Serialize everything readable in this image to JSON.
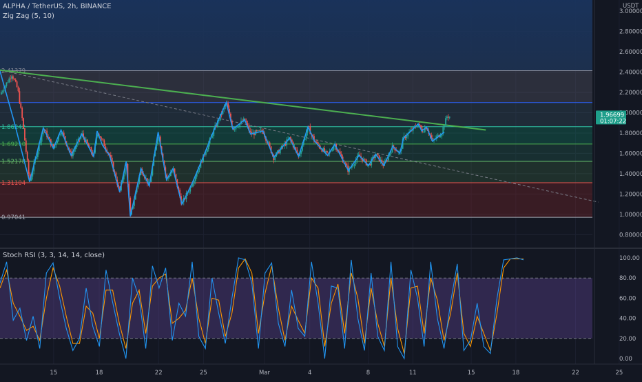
{
  "header": {
    "symbol_line": "ALPHA / TetherUS, 2h, BINANCE",
    "indicator_line": "Zig Zag (5, 10)",
    "currency": "USDT",
    "rsi_title": "Stoch RSI (3, 3, 14, 14, close)"
  },
  "colors": {
    "background": "#131722",
    "up_candle": "#26a69a",
    "down_candle": "#ef5350",
    "zigzag": "#2196f3",
    "trendline": "#4caf50",
    "price_tag": "#1e9e8a",
    "rsi_k": "#2196f3",
    "rsi_d": "#ff9800",
    "rsi_band": "#7e57c2"
  },
  "price_pane": {
    "y_ticks": [
      "3.00000",
      "2.80000",
      "2.60000",
      "2.40000",
      "2.20000",
      "2.00000",
      "1.80000",
      "1.60000",
      "1.40000",
      "1.20000",
      "1.00000",
      "0.80000"
    ],
    "fib_levels": [
      {
        "label": "2.41379",
        "value": 2.41379
      },
      {
        "label": "1.86242",
        "value": 1.86242
      },
      {
        "label": "1.69210",
        "value": 1.6921
      },
      {
        "label": "1.52178",
        "value": 1.52178
      },
      {
        "label": "1.31104",
        "value": 1.31104
      },
      {
        "label": "0.97041",
        "value": 0.97041
      }
    ],
    "extra_line": 2.1,
    "last_price": "1.96699",
    "countdown": "01:07:22",
    "zigzag": [
      [
        0,
        2.41
      ],
      [
        2.3,
        1.93
      ],
      [
        5,
        1.32
      ],
      [
        7.3,
        1.85
      ],
      [
        9,
        1.65
      ],
      [
        10.3,
        1.83
      ],
      [
        12,
        1.58
      ],
      [
        13.8,
        1.79
      ],
      [
        15.8,
        1.57
      ],
      [
        16.4,
        1.82
      ],
      [
        17.3,
        1.68
      ],
      [
        18.5,
        1.58
      ],
      [
        20.2,
        1.22
      ],
      [
        21.3,
        1.52
      ],
      [
        22,
        0.98
      ],
      [
        23.8,
        1.45
      ],
      [
        25.2,
        1.28
      ],
      [
        26.7,
        1.81
      ],
      [
        28.1,
        1.34
      ],
      [
        29.2,
        1.45
      ],
      [
        30.7,
        1.1
      ],
      [
        32.4,
        1.3
      ],
      [
        34.2,
        1.55
      ],
      [
        36.2,
        1.84
      ],
      [
        38.2,
        2.1
      ],
      [
        39.3,
        1.84
      ],
      [
        41.3,
        1.93
      ],
      [
        42.3,
        1.79
      ],
      [
        44.4,
        1.82
      ],
      [
        46.2,
        1.56
      ],
      [
        48.9,
        1.75
      ],
      [
        50.4,
        1.57
      ],
      [
        52,
        1.86
      ],
      [
        53.1,
        1.72
      ],
      [
        55.3,
        1.58
      ],
      [
        56.5,
        1.69
      ],
      [
        58.8,
        1.43
      ],
      [
        60.6,
        1.58
      ],
      [
        62.2,
        1.48
      ],
      [
        63.4,
        1.59
      ],
      [
        64.8,
        1.48
      ],
      [
        66.3,
        1.67
      ],
      [
        67.5,
        1.6
      ],
      [
        68.1,
        1.75
      ],
      [
        70.6,
        1.89
      ],
      [
        71.2,
        1.82
      ],
      [
        72,
        1.86
      ],
      [
        73,
        1.72
      ],
      [
        75,
        1.81
      ]
    ],
    "candle_path": [
      [
        0,
        2.18
      ],
      [
        2,
        2.38
      ],
      [
        3,
        2.23
      ],
      [
        3.8,
        1.92
      ],
      [
        5,
        1.32
      ],
      [
        7.3,
        1.85
      ],
      [
        9,
        1.65
      ],
      [
        10.3,
        1.83
      ],
      [
        12,
        1.58
      ],
      [
        13.8,
        1.79
      ],
      [
        15.8,
        1.57
      ],
      [
        16.4,
        1.82
      ],
      [
        18.5,
        1.58
      ],
      [
        20.2,
        1.22
      ],
      [
        21.3,
        1.52
      ],
      [
        22,
        0.98
      ],
      [
        23.8,
        1.45
      ],
      [
        25.2,
        1.28
      ],
      [
        26.7,
        1.81
      ],
      [
        28.1,
        1.34
      ],
      [
        29.2,
        1.45
      ],
      [
        30.7,
        1.1
      ],
      [
        32.4,
        1.3
      ],
      [
        34.2,
        1.55
      ],
      [
        36.2,
        1.84
      ],
      [
        38.2,
        2.1
      ],
      [
        39.3,
        1.84
      ],
      [
        41.3,
        1.93
      ],
      [
        42.3,
        1.79
      ],
      [
        44.4,
        1.82
      ],
      [
        46.2,
        1.56
      ],
      [
        48.9,
        1.75
      ],
      [
        50.4,
        1.57
      ],
      [
        52,
        1.86
      ],
      [
        53.1,
        1.72
      ],
      [
        55.3,
        1.58
      ],
      [
        56.5,
        1.69
      ],
      [
        58.8,
        1.43
      ],
      [
        60.6,
        1.58
      ],
      [
        62.2,
        1.48
      ],
      [
        63.4,
        1.59
      ],
      [
        64.8,
        1.48
      ],
      [
        66.3,
        1.67
      ],
      [
        67.5,
        1.6
      ],
      [
        68.1,
        1.75
      ],
      [
        70.6,
        1.89
      ],
      [
        71.2,
        1.82
      ],
      [
        72,
        1.86
      ],
      [
        73,
        1.72
      ],
      [
        74.5,
        1.8
      ],
      [
        75.5,
        1.97
      ],
      [
        76,
        1.96
      ]
    ],
    "trendline": [
      [
        0,
        2.42
      ],
      [
        82,
        1.83
      ]
    ],
    "dashed_line": [
      [
        0,
        2.42
      ],
      [
        101,
        1.12
      ]
    ]
  },
  "rsi_pane": {
    "y_ticks": [
      "100.00",
      "80.00",
      "60.00",
      "40.00",
      "20.00",
      "0.00"
    ],
    "upper_band": 80,
    "lower_band": 20,
    "k_line": [
      [
        0,
        75
      ],
      [
        1,
        96
      ],
      [
        2,
        38
      ],
      [
        3,
        50
      ],
      [
        4,
        18
      ],
      [
        5,
        42
      ],
      [
        6,
        10
      ],
      [
        7,
        85
      ],
      [
        8,
        95
      ],
      [
        9,
        60
      ],
      [
        10,
        30
      ],
      [
        11,
        8
      ],
      [
        12,
        20
      ],
      [
        13,
        70
      ],
      [
        14,
        32
      ],
      [
        15,
        12
      ],
      [
        16,
        88
      ],
      [
        17,
        56
      ],
      [
        18,
        25
      ],
      [
        19,
        0
      ],
      [
        20,
        80
      ],
      [
        21,
        60
      ],
      [
        22,
        10
      ],
      [
        23,
        92
      ],
      [
        24,
        70
      ],
      [
        25,
        90
      ],
      [
        26,
        18
      ],
      [
        27,
        55
      ],
      [
        28,
        42
      ],
      [
        29,
        96
      ],
      [
        30,
        22
      ],
      [
        31,
        10
      ],
      [
        32,
        80
      ],
      [
        33,
        45
      ],
      [
        34,
        15
      ],
      [
        35,
        60
      ],
      [
        36,
        100
      ],
      [
        37,
        98
      ],
      [
        38,
        75
      ],
      [
        39,
        10
      ],
      [
        40,
        85
      ],
      [
        41,
        95
      ],
      [
        42,
        35
      ],
      [
        43,
        12
      ],
      [
        44,
        68
      ],
      [
        45,
        30
      ],
      [
        46,
        22
      ],
      [
        47,
        96
      ],
      [
        48,
        55
      ],
      [
        49,
        0
      ],
      [
        50,
        72
      ],
      [
        51,
        70
      ],
      [
        52,
        10
      ],
      [
        53,
        98
      ],
      [
        54,
        40
      ],
      [
        55,
        8
      ],
      [
        56,
        85
      ],
      [
        57,
        22
      ],
      [
        58,
        8
      ],
      [
        59,
        96
      ],
      [
        60,
        12
      ],
      [
        61,
        0
      ],
      [
        62,
        88
      ],
      [
        63,
        60
      ],
      [
        64,
        12
      ],
      [
        65,
        96
      ],
      [
        66,
        40
      ],
      [
        67,
        10
      ],
      [
        68,
        56
      ],
      [
        69,
        94
      ],
      [
        70,
        8
      ],
      [
        71,
        18
      ],
      [
        72,
        55
      ],
      [
        73,
        12
      ],
      [
        74,
        5
      ],
      [
        75,
        60
      ],
      [
        76,
        98
      ],
      [
        77,
        99
      ],
      [
        78,
        100
      ],
      [
        79,
        98
      ]
    ],
    "d_line": [
      [
        0,
        70
      ],
      [
        1,
        88
      ],
      [
        2,
        55
      ],
      [
        3,
        42
      ],
      [
        4,
        28
      ],
      [
        5,
        32
      ],
      [
        6,
        18
      ],
      [
        7,
        60
      ],
      [
        8,
        90
      ],
      [
        9,
        72
      ],
      [
        10,
        42
      ],
      [
        11,
        15
      ],
      [
        12,
        15
      ],
      [
        13,
        52
      ],
      [
        14,
        45
      ],
      [
        15,
        20
      ],
      [
        16,
        68
      ],
      [
        17,
        68
      ],
      [
        18,
        35
      ],
      [
        19,
        10
      ],
      [
        20,
        55
      ],
      [
        21,
        68
      ],
      [
        22,
        25
      ],
      [
        23,
        72
      ],
      [
        24,
        80
      ],
      [
        25,
        84
      ],
      [
        26,
        35
      ],
      [
        27,
        40
      ],
      [
        28,
        48
      ],
      [
        29,
        80
      ],
      [
        30,
        40
      ],
      [
        31,
        15
      ],
      [
        32,
        60
      ],
      [
        33,
        58
      ],
      [
        34,
        22
      ],
      [
        35,
        45
      ],
      [
        36,
        90
      ],
      [
        37,
        99
      ],
      [
        38,
        85
      ],
      [
        39,
        25
      ],
      [
        40,
        65
      ],
      [
        41,
        92
      ],
      [
        42,
        50
      ],
      [
        43,
        18
      ],
      [
        44,
        52
      ],
      [
        45,
        38
      ],
      [
        46,
        25
      ],
      [
        47,
        80
      ],
      [
        48,
        70
      ],
      [
        49,
        12
      ],
      [
        50,
        55
      ],
      [
        51,
        74
      ],
      [
        52,
        25
      ],
      [
        53,
        85
      ],
      [
        54,
        60
      ],
      [
        55,
        15
      ],
      [
        56,
        70
      ],
      [
        57,
        35
      ],
      [
        58,
        12
      ],
      [
        59,
        80
      ],
      [
        60,
        30
      ],
      [
        61,
        5
      ],
      [
        62,
        70
      ],
      [
        63,
        72
      ],
      [
        64,
        25
      ],
      [
        65,
        80
      ],
      [
        66,
        58
      ],
      [
        67,
        18
      ],
      [
        68,
        45
      ],
      [
        69,
        85
      ],
      [
        70,
        25
      ],
      [
        71,
        12
      ],
      [
        72,
        42
      ],
      [
        73,
        25
      ],
      [
        74,
        8
      ],
      [
        75,
        45
      ],
      [
        76,
        90
      ],
      [
        77,
        99
      ],
      [
        78,
        99
      ],
      [
        79,
        99
      ]
    ]
  },
  "x_axis": {
    "labels": [
      {
        "text": "15",
        "pos": 0.0835
      },
      {
        "text": "18",
        "pos": 0.1545
      },
      {
        "text": "22",
        "pos": 0.247
      },
      {
        "text": "25",
        "pos": 0.317
      },
      {
        "text": "Mar",
        "pos": 0.412
      },
      {
        "text": "4",
        "pos": 0.4825
      },
      {
        "text": "8",
        "pos": 0.5735
      },
      {
        "text": "11",
        "pos": 0.643
      },
      {
        "text": "15",
        "pos": 0.734
      },
      {
        "text": "18",
        "pos": 0.8035
      },
      {
        "text": "22",
        "pos": 0.8965
      },
      {
        "text": "25",
        "pos": 0.9645
      }
    ]
  }
}
